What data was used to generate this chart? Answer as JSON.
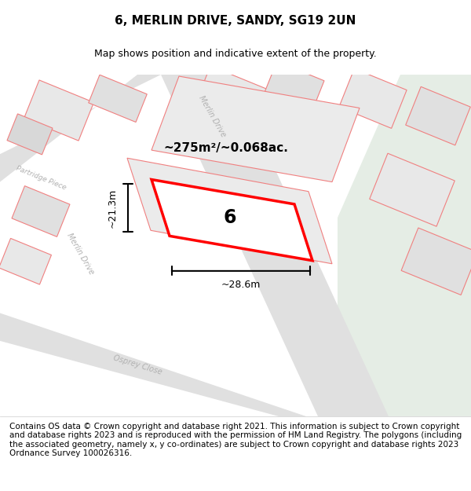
{
  "title": "6, MERLIN DRIVE, SANDY, SG19 2UN",
  "subtitle": "Map shows position and indicative extent of the property.",
  "footer": "Contains OS data © Crown copyright and database right 2021. This information is subject to Crown copyright and database rights 2023 and is reproduced with the permission of HM Land Registry. The polygons (including the associated geometry, namely x, y co-ordinates) are subject to Crown copyright and database rights 2023 Ordnance Survey 100026316.",
  "area_text": "~275m²/~0.068ac.",
  "width_text": "~28.6m",
  "height_text": "~21.3m",
  "property_number": "6",
  "map_bg": "#f2f2f2",
  "pink_line": "#f08080",
  "red_line": "#ff0000",
  "title_fontsize": 11,
  "subtitle_fontsize": 9,
  "footer_fontsize": 7.5
}
